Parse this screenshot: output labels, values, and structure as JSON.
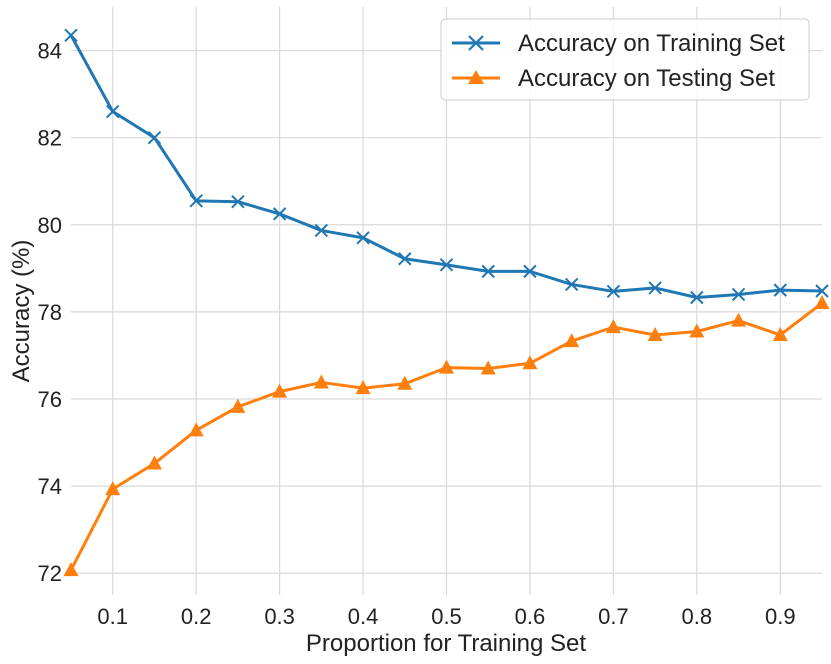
{
  "chart_data": {
    "type": "line",
    "title": "",
    "xlabel": "Proportion for Training Set",
    "ylabel": "Accuracy (%)",
    "xlim": [
      0.05,
      0.95
    ],
    "ylim": [
      71.5,
      85.0
    ],
    "xticks": [
      "0.1",
      "0.2",
      "0.3",
      "0.4",
      "0.5",
      "0.6",
      "0.7",
      "0.8",
      "0.9"
    ],
    "yticks": [
      "72",
      "74",
      "76",
      "78",
      "80",
      "82",
      "84"
    ],
    "grid": true,
    "legend_position": "top-right",
    "x": [
      0.05,
      0.1,
      0.15,
      0.2,
      0.25,
      0.3,
      0.35,
      0.4,
      0.45,
      0.5,
      0.55,
      0.6,
      0.65,
      0.7,
      0.75,
      0.8,
      0.85,
      0.9,
      0.95
    ],
    "series": [
      {
        "name": "Accuracy on Training Set",
        "color": "#1f77b4",
        "marker": "x",
        "values": [
          84.35,
          82.6,
          82.0,
          80.55,
          80.53,
          80.25,
          79.87,
          79.7,
          79.22,
          79.08,
          78.93,
          78.93,
          78.63,
          78.47,
          78.55,
          78.33,
          78.4,
          78.5,
          78.48
        ]
      },
      {
        "name": "Accuracy on Testing Set",
        "color": "#ff7f0e",
        "marker": "triangle",
        "values": [
          72.07,
          73.93,
          74.52,
          75.28,
          75.82,
          76.17,
          76.38,
          76.25,
          76.35,
          76.72,
          76.7,
          76.82,
          77.33,
          77.65,
          77.47,
          77.55,
          77.8,
          77.47,
          78.2
        ]
      }
    ]
  }
}
